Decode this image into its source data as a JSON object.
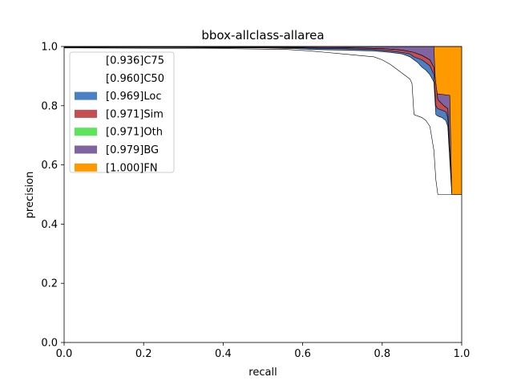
{
  "chart_data": {
    "type": "area",
    "title": "bbox-allclass-allarea",
    "xlabel": "recall",
    "ylabel": "precision",
    "xlim": [
      0,
      1
    ],
    "ylim": [
      0,
      1
    ],
    "xticks": [
      "0.0",
      "0.2",
      "0.4",
      "0.6",
      "0.8",
      "1.0"
    ],
    "yticks": [
      "0.0",
      "0.2",
      "0.4",
      "0.6",
      "0.8",
      "1.0"
    ],
    "grid": false,
    "legend_position": "top-left",
    "series": [
      {
        "name": "[0.936]C75",
        "color": "#ffffff",
        "stroke": "#000000",
        "x": [
          0,
          0.04,
          0.2,
          0.4,
          0.56,
          0.62,
          0.66,
          0.7,
          0.74,
          0.78,
          0.8,
          0.82,
          0.84,
          0.86,
          0.87,
          0.875,
          0.88,
          0.9,
          0.91,
          0.92,
          0.93,
          0.935,
          0.94,
          0.97,
          1.0
        ],
        "y": [
          0.995,
          0.995,
          0.994,
          0.993,
          0.99,
          0.985,
          0.98,
          0.975,
          0.97,
          0.965,
          0.955,
          0.94,
          0.92,
          0.9,
          0.89,
          0.875,
          0.77,
          0.76,
          0.75,
          0.73,
          0.65,
          0.55,
          0.5,
          0.5,
          0.5
        ]
      },
      {
        "name": "[0.960]C50",
        "color": "#ffffff",
        "stroke": "#000000",
        "x": [
          0,
          0.04,
          0.3,
          0.5,
          0.58,
          0.62,
          0.7,
          0.78,
          0.82,
          0.85,
          0.87,
          0.88,
          0.89,
          0.9,
          0.91,
          0.92,
          0.93,
          0.935,
          0.94,
          0.95,
          0.96,
          0.965,
          0.975,
          1.0
        ],
        "y": [
          0.997,
          0.997,
          0.996,
          0.995,
          0.993,
          0.99,
          0.988,
          0.985,
          0.98,
          0.975,
          0.965,
          0.955,
          0.945,
          0.93,
          0.92,
          0.905,
          0.88,
          0.77,
          0.765,
          0.76,
          0.75,
          0.73,
          0.5,
          0.5
        ]
      },
      {
        "name": "[0.969]Loc",
        "color": "#4c80c4",
        "stroke": "#000000",
        "x": [
          0,
          0.04,
          0.3,
          0.5,
          0.6,
          0.7,
          0.78,
          0.82,
          0.85,
          0.87,
          0.88,
          0.9,
          0.91,
          0.92,
          0.93,
          0.935,
          0.94,
          0.95,
          0.96,
          0.965,
          0.975,
          1.0
        ],
        "y": [
          0.998,
          0.998,
          0.997,
          0.996,
          0.995,
          0.993,
          0.99,
          0.985,
          0.98,
          0.975,
          0.965,
          0.955,
          0.945,
          0.935,
          0.905,
          0.8,
          0.79,
          0.785,
          0.78,
          0.76,
          0.5,
          0.5
        ]
      },
      {
        "name": "[0.971]Sim",
        "color": "#c44e52",
        "stroke": "#000000",
        "x": [
          0,
          0.04,
          0.5,
          0.7,
          0.8,
          0.85,
          0.88,
          0.9,
          0.92,
          0.93,
          0.94,
          0.955,
          0.965,
          0.975,
          1.0
        ],
        "y": [
          0.999,
          0.999,
          0.998,
          0.996,
          0.993,
          0.988,
          0.98,
          0.97,
          0.955,
          0.93,
          0.82,
          0.8,
          0.79,
          0.5,
          0.5
        ]
      },
      {
        "name": "[0.971]Oth",
        "color": "#5ae55a",
        "stroke": "#000000",
        "x": [
          0,
          0.04,
          0.5,
          0.7,
          0.8,
          0.85,
          0.88,
          0.9,
          0.92,
          0.93,
          0.94,
          0.955,
          0.965,
          0.975,
          1.0
        ],
        "y": [
          0.999,
          0.999,
          0.998,
          0.996,
          0.993,
          0.988,
          0.98,
          0.97,
          0.955,
          0.93,
          0.82,
          0.8,
          0.79,
          0.5,
          0.5
        ]
      },
      {
        "name": "[0.979]BG",
        "color": "#8064a2",
        "stroke": "#000000",
        "x": [
          0,
          0.04,
          0.93,
          0.935,
          0.94,
          0.97,
          0.975,
          0.98,
          1.0
        ],
        "y": [
          1.0,
          1.0,
          1.0,
          0.84,
          0.84,
          0.835,
          0.5,
          0.5,
          0.5
        ]
      },
      {
        "name": "[1.000]FN",
        "color": "#ff9900",
        "stroke": "#000000",
        "x": [
          0,
          0.04,
          0.965,
          0.97,
          1.0
        ],
        "y": [
          1.0,
          1.0,
          1.0,
          1.0,
          1.0
        ]
      }
    ]
  }
}
